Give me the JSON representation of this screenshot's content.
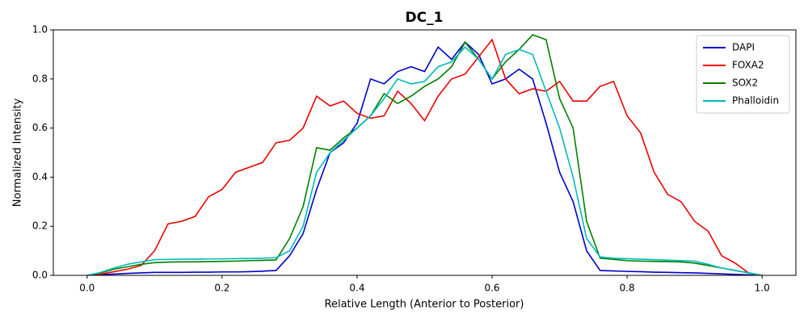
{
  "chart_data": {
    "type": "line",
    "title": "DC_1",
    "x_label": "Relative Length (Anterior to Posterior)",
    "y_label": "Normalized Intensity",
    "x": [
      0,
      0.02,
      0.04,
      0.06,
      0.08,
      0.1,
      0.12,
      0.14,
      0.16,
      0.18,
      0.2,
      0.22,
      0.24,
      0.26,
      0.28,
      0.3,
      0.32,
      0.34,
      0.36,
      0.38,
      0.4,
      0.42,
      0.44,
      0.46,
      0.48,
      0.5,
      0.52,
      0.54,
      0.56,
      0.58,
      0.6,
      0.62,
      0.64,
      0.66,
      0.68,
      0.7,
      0.72,
      0.74,
      0.76,
      0.78,
      0.8,
      0.82,
      0.84,
      0.86,
      0.88,
      0.9,
      0.92,
      0.94,
      0.96,
      0.98,
      1
    ],
    "series": [
      {
        "name": "DAPI",
        "color": "#0000cc",
        "values": [
          0,
          0.003,
          0.005,
          0.008,
          0.01,
          0.012,
          0.012,
          0.012,
          0.013,
          0.013,
          0.014,
          0.014,
          0.015,
          0.017,
          0.02,
          0.08,
          0.17,
          0.35,
          0.5,
          0.54,
          0.62,
          0.8,
          0.78,
          0.83,
          0.85,
          0.83,
          0.93,
          0.88,
          0.95,
          0.9,
          0.78,
          0.8,
          0.84,
          0.8,
          0.62,
          0.42,
          0.3,
          0.1,
          0.02,
          0.018,
          0.016,
          0.015,
          0.013,
          0.012,
          0.011,
          0.01,
          0.008,
          0.006,
          0.004,
          0.002,
          0
        ]
      },
      {
        "name": "FOXA2",
        "color": "#ee0000",
        "values": [
          0,
          0.005,
          0.015,
          0.025,
          0.04,
          0.1,
          0.21,
          0.22,
          0.24,
          0.32,
          0.35,
          0.42,
          0.44,
          0.46,
          0.54,
          0.55,
          0.6,
          0.73,
          0.69,
          0.71,
          0.66,
          0.64,
          0.65,
          0.75,
          0.7,
          0.63,
          0.73,
          0.8,
          0.82,
          0.89,
          0.96,
          0.8,
          0.74,
          0.76,
          0.75,
          0.79,
          0.71,
          0.71,
          0.77,
          0.79,
          0.65,
          0.58,
          0.42,
          0.33,
          0.3,
          0.22,
          0.18,
          0.08,
          0.05,
          0.01,
          0
        ]
      },
      {
        "name": "SOX2",
        "color": "#008000",
        "values": [
          0,
          0.01,
          0.025,
          0.035,
          0.045,
          0.052,
          0.054,
          0.055,
          0.055,
          0.056,
          0.057,
          0.058,
          0.06,
          0.061,
          0.063,
          0.15,
          0.28,
          0.52,
          0.51,
          0.56,
          0.6,
          0.65,
          0.74,
          0.7,
          0.73,
          0.77,
          0.8,
          0.85,
          0.95,
          0.88,
          0.8,
          0.87,
          0.92,
          0.98,
          0.96,
          0.72,
          0.6,
          0.22,
          0.07,
          0.065,
          0.06,
          0.058,
          0.057,
          0.056,
          0.055,
          0.05,
          0.04,
          0.03,
          0.02,
          0.01,
          0
        ]
      },
      {
        "name": "Phalloidin",
        "color": "#00bbbb",
        "values": [
          0,
          0.012,
          0.03,
          0.045,
          0.055,
          0.064,
          0.065,
          0.066,
          0.066,
          0.067,
          0.067,
          0.068,
          0.069,
          0.07,
          0.072,
          0.1,
          0.2,
          0.42,
          0.5,
          0.55,
          0.6,
          0.65,
          0.72,
          0.8,
          0.78,
          0.79,
          0.85,
          0.87,
          0.93,
          0.88,
          0.8,
          0.9,
          0.92,
          0.9,
          0.75,
          0.6,
          0.4,
          0.15,
          0.075,
          0.07,
          0.068,
          0.066,
          0.064,
          0.062,
          0.06,
          0.058,
          0.045,
          0.03,
          0.02,
          0.01,
          0
        ]
      }
    ],
    "xlim": [
      -0.05,
      1.05
    ],
    "ylim": [
      0,
      1
    ],
    "xticks": [
      {
        "value": 0,
        "label": "0.0"
      },
      0.2,
      0.4,
      0.6,
      0.8,
      {
        "value": 1,
        "label": "1.0"
      }
    ],
    "yticks": [
      {
        "value": 0,
        "label": "0.0"
      },
      0.2,
      0.4,
      0.6,
      0.8,
      {
        "value": 1,
        "label": "1.0"
      }
    ],
    "legend": "upper right"
  }
}
